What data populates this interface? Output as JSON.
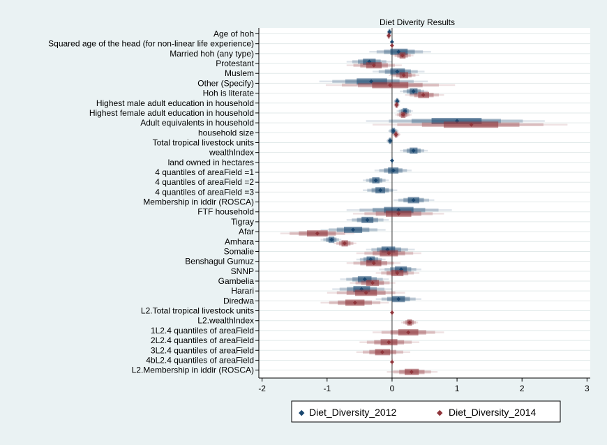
{
  "chart_data": {
    "type": "coefficient-plot",
    "title": "Diet Diverity Results",
    "xlabel": "",
    "ylabel": "",
    "xlim": [
      -2.05,
      3.05
    ],
    "xticks": [
      -2,
      -1,
      0,
      1,
      2,
      3
    ],
    "xtick_labels": [
      "-2",
      "-1",
      "0",
      "1",
      "2",
      "3"
    ],
    "reference_line": 0,
    "grid": true,
    "legend_position": "bottom",
    "colors": {
      "background": "#eaf2f3",
      "plot_background": "#ffffff",
      "grid": "#e2eaea",
      "Diet_Diversity_2012": "#1a476f",
      "Diet_Diversity_2014": "#90353b"
    },
    "categories": [
      "Age of hoh",
      "Squared age of the head (for non-linear life experience)",
      "Married hoh (any type)",
      "Protestant",
      "Muslem",
      "Other (Specify)",
      "Hoh is literate",
      "Highest male adult education in household",
      "Highest female adult education in household",
      "Adult equivalents in household",
      "household size",
      "Total tropical livestock units",
      "wealthIndex",
      "land owned in hectares",
      "4 quantiles of areaField =1",
      "4 quantiles of areaField =2",
      "4 quantiles of areaField =3",
      "Membership in iddir (ROSCA)",
      "FTF household",
      "Tigray",
      "Afar",
      "Amhara",
      "Somalie",
      "Benshagul Gumuz",
      "SNNP",
      "Gambelia",
      "Harari",
      "Diredwa",
      "L2.Total tropical livestock units",
      "L2.wealthIndex",
      "1L2.4 quantiles of areaField",
      "2L2.4 quantiles of areaField",
      "3L2.4 quantiles of areaField",
      "4bL2.4 quantiles of areaField",
      "L2.Membership in iddir (ROSCA)"
    ],
    "series": [
      {
        "name": "Diet_Diversity_2012",
        "estimates": [
          -0.04,
          -0.001,
          0.1,
          -0.35,
          0.08,
          -0.32,
          0.33,
          0.08,
          0.2,
          1.0,
          0.02,
          -0.03,
          0.33,
          0.0,
          0.02,
          -0.25,
          -0.18,
          0.33,
          0.1,
          -0.38,
          -0.6,
          -0.93,
          -0.07,
          -0.33,
          0.14,
          -0.42,
          -0.47,
          0.1,
          null,
          null,
          null,
          null,
          null,
          null,
          null
        ],
        "ci_low": [
          -0.08,
          -0.01,
          -0.35,
          -0.7,
          -0.3,
          -1.12,
          0.12,
          0.02,
          0.07,
          -0.4,
          -0.06,
          -0.09,
          0.12,
          -0.01,
          -0.27,
          -0.45,
          -0.45,
          0.02,
          -0.7,
          -0.7,
          -1.1,
          -1.1,
          -0.4,
          -0.55,
          -0.2,
          -0.8,
          -0.92,
          -0.25,
          null,
          null,
          null,
          null,
          null,
          null,
          null
        ],
        "ci_high": [
          0.0,
          0.01,
          0.6,
          0.0,
          0.5,
          0.55,
          0.55,
          0.13,
          0.32,
          2.35,
          0.1,
          0.02,
          0.55,
          0.01,
          0.3,
          -0.05,
          0.08,
          0.65,
          0.92,
          -0.05,
          -0.1,
          -0.78,
          0.35,
          -0.1,
          0.45,
          -0.05,
          0.0,
          0.45,
          null,
          null,
          null,
          null,
          null,
          null,
          null
        ]
      },
      {
        "name": "Diet_Diversity_2014",
        "estimates": [
          -0.05,
          -0.001,
          0.16,
          -0.28,
          0.18,
          -0.03,
          0.48,
          0.07,
          0.17,
          1.22,
          0.06,
          null,
          null,
          null,
          null,
          null,
          null,
          null,
          0.1,
          null,
          -1.15,
          -0.73,
          -0.05,
          -0.28,
          0.08,
          -0.3,
          -0.4,
          -0.57,
          0.0,
          0.27,
          0.25,
          -0.05,
          -0.15,
          0.0,
          0.3
        ],
        "ci_low": [
          -0.09,
          -0.01,
          0.0,
          -0.7,
          -0.05,
          -1.02,
          0.2,
          0.02,
          0.05,
          -0.3,
          0.0,
          null,
          null,
          null,
          null,
          null,
          null,
          null,
          -0.6,
          null,
          -1.72,
          -0.9,
          -0.55,
          -0.7,
          -0.25,
          -0.65,
          -1.0,
          -1.1,
          -0.02,
          0.14,
          -0.3,
          -0.5,
          -0.55,
          -0.01,
          -0.08
        ],
        "ci_high": [
          -0.01,
          0.01,
          0.33,
          0.15,
          0.42,
          0.97,
          0.8,
          0.12,
          0.3,
          2.7,
          0.13,
          null,
          null,
          null,
          null,
          null,
          null,
          null,
          0.8,
          null,
          -0.58,
          -0.55,
          0.45,
          0.13,
          0.42,
          0.05,
          0.2,
          -0.05,
          0.02,
          0.4,
          0.8,
          0.42,
          0.28,
          0.01,
          0.7
        ]
      }
    ]
  }
}
